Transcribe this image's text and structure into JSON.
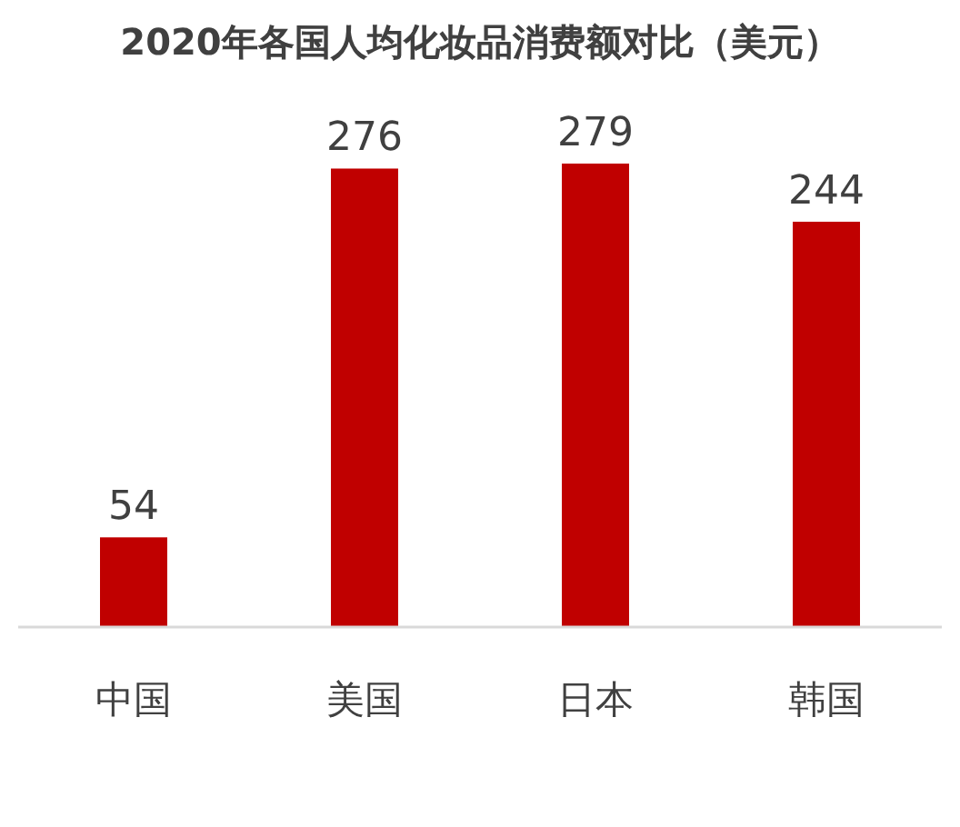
{
  "chart_data": {
    "type": "bar",
    "title": "2020年各国人均化妆品消费额对比（美元）",
    "categories": [
      "中国",
      "美国",
      "日本",
      "韩国"
    ],
    "values": [
      54,
      276,
      279,
      244
    ],
    "color": "#c00000",
    "data_labels": true
  }
}
